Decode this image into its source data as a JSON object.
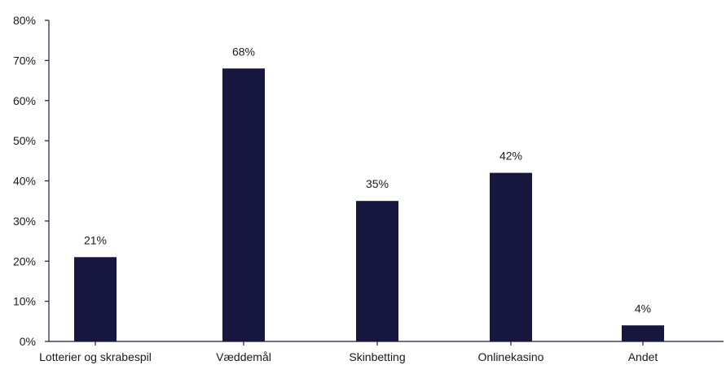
{
  "chart_data": {
    "type": "bar",
    "categories": [
      "Lotterier og skrabespil",
      "Væddemål",
      "Skinbetting",
      "Onlinekasino",
      "Andet"
    ],
    "values": [
      21,
      68,
      35,
      42,
      4
    ],
    "data_labels": [
      "21%",
      "68%",
      "35%",
      "42%",
      "4%"
    ],
    "title": "",
    "xlabel": "",
    "ylabel": "",
    "ylim": [
      0,
      80
    ],
    "yticks": [
      0,
      10,
      20,
      30,
      40,
      50,
      60,
      70,
      80
    ],
    "ytick_labels": [
      "0%",
      "10%",
      "20%",
      "30%",
      "40%",
      "50%",
      "60%",
      "70%",
      "80%"
    ],
    "grid": false,
    "legend": "none",
    "bar_color": "#16163f"
  }
}
